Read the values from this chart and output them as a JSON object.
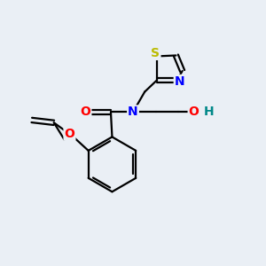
{
  "bg_color": "#eaeff5",
  "bond_color": "#000000",
  "bond_width": 1.6,
  "atom_colors": {
    "O": "#ff0000",
    "N": "#0000ff",
    "S": "#bbbb00",
    "H": "#008888",
    "C": "#000000"
  }
}
